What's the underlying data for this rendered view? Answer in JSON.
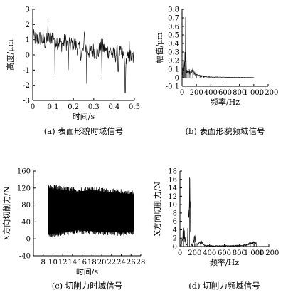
{
  "chart_data": [
    {
      "type": "line",
      "caption": "(a) 表面形貌时域信号",
      "xlabel": "时间/s",
      "ylabel": "高度/μm",
      "xlim": [
        0,
        0.5
      ],
      "ylim": [
        -3,
        3
      ],
      "xticks": [
        "0",
        "0.1",
        "0.2",
        "0.3",
        "0.4",
        "0.5"
      ],
      "yticks": [
        "3",
        "2",
        "1",
        "0",
        "-1",
        "-2",
        "-3"
      ],
      "series": [
        {
          "x": [
            0.0,
            0.02,
            0.04,
            0.06,
            0.08,
            0.1,
            0.12,
            0.14,
            0.16,
            0.18,
            0.2,
            0.22,
            0.24,
            0.26,
            0.28,
            0.3,
            0.32,
            0.34,
            0.36,
            0.38,
            0.4,
            0.42,
            0.44,
            0.46,
            0.48,
            0.5
          ],
          "y": [
            1.2,
            1.0,
            1.1,
            0.8,
            1.0,
            1.3,
            0.9,
            0.7,
            0.9,
            0.6,
            0.8,
            0.5,
            0.1,
            0.5,
            0.2,
            0.3,
            0.1,
            0.6,
            0.2,
            0.3,
            -0.1,
            0.2,
            0.0,
            -0.4,
            -0.1,
            -0.2
          ],
          "peaks": [
            [
              0.075,
              2.2
            ],
            [
              0.11,
              -1.3
            ],
            [
              0.175,
              -1.0
            ],
            [
              0.255,
              1.5
            ],
            [
              0.265,
              -1.9
            ],
            [
              0.34,
              -1.5
            ],
            [
              0.42,
              -1.1
            ],
            [
              0.455,
              -2.5
            ],
            [
              0.475,
              0.9
            ]
          ]
        }
      ]
    },
    {
      "type": "line",
      "caption": "(b) 表面形貌频域信号",
      "xlabel": "频率/Hz",
      "ylabel": "幅值/μm",
      "xlim": [
        0,
        1200
      ],
      "ylim": [
        -0.1,
        0.8
      ],
      "xticks": [
        "0",
        "200",
        "400",
        "600",
        "800",
        "1 000",
        "1 200"
      ],
      "yticks": [
        "0.8",
        "0.7",
        "0.6",
        "0.5",
        "0.4",
        "0.3",
        "0.2",
        "0.1",
        "0",
        "-0.1"
      ],
      "series": [
        {
          "x": [
            0,
            10,
            20,
            30,
            40,
            50,
            60,
            80,
            100,
            120,
            150,
            200,
            250,
            300,
            400,
            500,
            700,
            1000
          ],
          "y": [
            0.05,
            0.12,
            0.2,
            0.15,
            0.3,
            0.71,
            0.12,
            0.08,
            0.1,
            0.06,
            0.12,
            0.04,
            0.03,
            0.02,
            0.01,
            0.01,
            0.005,
            0.003
          ]
        }
      ]
    },
    {
      "type": "area",
      "caption": "(c) 切削力时域信号",
      "xlabel": "时间/s",
      "ylabel": "X方向切削力/N",
      "xlim": [
        6,
        28
      ],
      "ylim": [
        -40,
        160
      ],
      "xticks": [
        "8",
        "10",
        "12",
        "14",
        "16",
        "18",
        "20",
        "22",
        "24",
        "26",
        "28"
      ],
      "yticks": [
        "160",
        "120",
        "80",
        "40",
        "0",
        "-40"
      ],
      "series": [
        {
          "x": [
            9,
            12,
            15,
            18,
            21,
            24,
            26.5
          ],
          "upper": [
            120,
            115,
            112,
            115,
            110,
            108,
            105
          ],
          "lower": [
            10,
            15,
            20,
            18,
            16,
            15,
            18
          ]
        }
      ]
    },
    {
      "type": "line",
      "caption": "(d) 切削力频域信号",
      "xlabel": "频率/Hz",
      "ylabel": "X方向切削力/N",
      "xlim": [
        0,
        1200
      ],
      "ylim": [
        0,
        18
      ],
      "xticks": [
        "0",
        "200",
        "400",
        "600",
        "800",
        "1 000",
        "1 200"
      ],
      "yticks": [
        "18",
        "16",
        "14",
        "12",
        "10",
        "8",
        "6",
        "4",
        "2",
        "0"
      ],
      "series": [
        {
          "x": [
            0,
            20,
            50,
            80,
            100,
            130,
            150,
            170,
            200,
            230,
            280,
            330,
            400,
            500,
            600,
            700,
            800,
            900,
            950,
            1000,
            1030
          ],
          "y": [
            0.3,
            0.5,
            4.5,
            0.5,
            0.4,
            16.5,
            0.6,
            0.4,
            2.5,
            0.4,
            1.3,
            0.3,
            0.2,
            0.2,
            0.2,
            0.2,
            0.3,
            0.4,
            0.8,
            1.2,
            0.8
          ]
        }
      ]
    }
  ]
}
